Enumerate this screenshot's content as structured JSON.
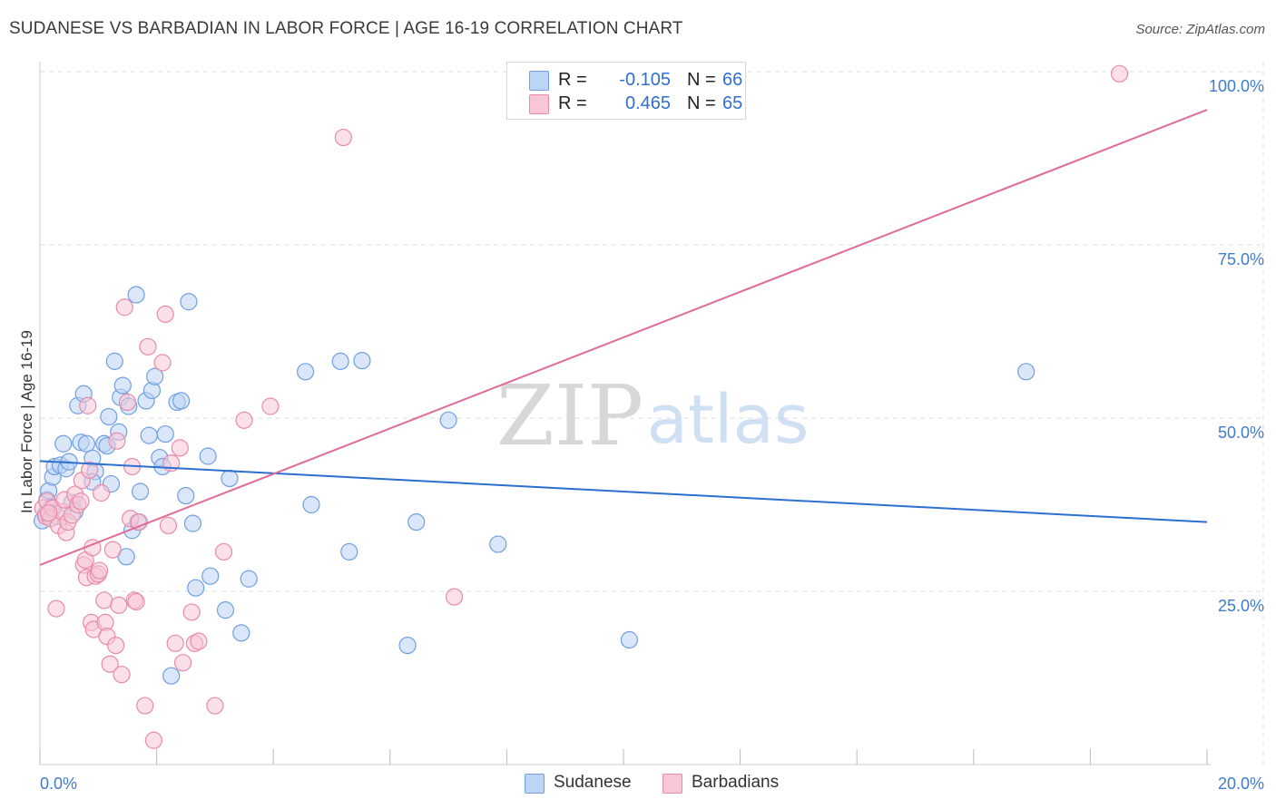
{
  "title": "SUDANESE VS BARBADIAN IN LABOR FORCE | AGE 16-19 CORRELATION CHART",
  "source": "Source: ZipAtlas.com",
  "watermark": {
    "zip": "ZIP",
    "atlas": "atlas"
  },
  "legend": {
    "sudanese": {
      "r_label": "R =",
      "r_value": "-0.105",
      "n_label": "N =",
      "n_value": "66"
    },
    "barbadians": {
      "r_label": "R =",
      "r_value": "0.465",
      "n_label": "N =",
      "n_value": "65"
    }
  },
  "bottom_legend": {
    "sudanese": "Sudanese",
    "barbadians": "Barbadians"
  },
  "colors": {
    "blue_fill": "#bcd4f5",
    "blue_stroke": "#6f9fe0",
    "blue_line": "#2b6fd0",
    "pink_fill": "#f8c6d6",
    "pink_stroke": "#e98aaa",
    "pink_line": "#e06b96",
    "axis_text": "#3f7bd0",
    "grid": "#dddddd"
  },
  "chart_data": {
    "type": "scatter",
    "title": "SUDANESE VS BARBADIAN IN LABOR FORCE | AGE 16-19 CORRELATION CHART",
    "xlabel": "",
    "ylabel": "In Labor Force | Age 16-19",
    "xlim": [
      0,
      20
    ],
    "ylim": [
      0,
      100
    ],
    "x_tick_labels": [
      {
        "value": 0,
        "label": "0.0%"
      },
      {
        "value": 20,
        "label": "20.0%"
      }
    ],
    "y_tick_labels": [
      {
        "value": 25,
        "label": "25.0%"
      },
      {
        "value": 50,
        "label": "50.0%"
      },
      {
        "value": 75,
        "label": "75.0%"
      },
      {
        "value": 100,
        "label": "100.0%"
      }
    ],
    "series": [
      {
        "name": "Sudanese",
        "color": "#6f9fe0",
        "trendline": {
          "x": [
            0,
            20
          ],
          "y": [
            43.8,
            35.0
          ]
        },
        "points": [
          [
            0.04,
            35.2
          ],
          [
            0.12,
            38.2
          ],
          [
            0.15,
            39.5
          ],
          [
            0.22,
            41.5
          ],
          [
            0.25,
            43.0
          ],
          [
            0.35,
            43.2
          ],
          [
            0.4,
            46.3
          ],
          [
            0.45,
            42.7
          ],
          [
            0.5,
            43.7
          ],
          [
            0.55,
            37.8
          ],
          [
            0.6,
            36.5
          ],
          [
            0.65,
            51.8
          ],
          [
            0.7,
            46.5
          ],
          [
            0.75,
            53.5
          ],
          [
            0.8,
            46.3
          ],
          [
            0.9,
            44.2
          ],
          [
            0.95,
            42.3
          ],
          [
            0.9,
            40.8
          ],
          [
            1.1,
            46.3
          ],
          [
            1.15,
            46.0
          ],
          [
            1.18,
            50.2
          ],
          [
            1.22,
            40.5
          ],
          [
            1.28,
            58.2
          ],
          [
            1.35,
            48.0
          ],
          [
            1.38,
            53.0
          ],
          [
            1.42,
            54.7
          ],
          [
            1.48,
            30.0
          ],
          [
            1.52,
            51.7
          ],
          [
            1.58,
            33.8
          ],
          [
            1.65,
            67.8
          ],
          [
            1.68,
            35.0
          ],
          [
            1.72,
            39.4
          ],
          [
            1.82,
            52.5
          ],
          [
            1.87,
            47.5
          ],
          [
            1.92,
            54.0
          ],
          [
            1.97,
            56.0
          ],
          [
            2.05,
            44.3
          ],
          [
            2.1,
            43.0
          ],
          [
            2.15,
            47.7
          ],
          [
            2.25,
            12.8
          ],
          [
            2.35,
            52.3
          ],
          [
            2.42,
            52.5
          ],
          [
            2.5,
            38.8
          ],
          [
            2.55,
            66.8
          ],
          [
            2.62,
            34.8
          ],
          [
            2.67,
            25.5
          ],
          [
            2.88,
            44.5
          ],
          [
            2.92,
            27.2
          ],
          [
            3.18,
            22.3
          ],
          [
            3.25,
            41.3
          ],
          [
            3.45,
            19.0
          ],
          [
            3.58,
            26.8
          ],
          [
            4.55,
            56.7
          ],
          [
            4.65,
            37.5
          ],
          [
            5.15,
            58.2
          ],
          [
            5.3,
            30.7
          ],
          [
            5.52,
            58.3
          ],
          [
            6.3,
            17.2
          ],
          [
            6.45,
            35.0
          ],
          [
            7.0,
            49.7
          ],
          [
            7.85,
            31.8
          ],
          [
            10.1,
            18.0
          ],
          [
            16.9,
            56.7
          ],
          [
            0.3,
            35.8
          ],
          [
            0.1,
            36.2
          ],
          [
            0.2,
            37.1
          ]
        ]
      },
      {
        "name": "Barbadians",
        "color": "#e98aaa",
        "trendline": {
          "x": [
            0,
            20
          ],
          "y": [
            28.8,
            94.5
          ]
        },
        "points": [
          [
            0.05,
            37.0
          ],
          [
            0.1,
            35.8
          ],
          [
            0.12,
            38.0
          ],
          [
            0.18,
            35.5
          ],
          [
            0.22,
            37.0
          ],
          [
            0.28,
            22.5
          ],
          [
            0.32,
            34.5
          ],
          [
            0.38,
            36.5
          ],
          [
            0.42,
            38.2
          ],
          [
            0.45,
            33.5
          ],
          [
            0.48,
            35.0
          ],
          [
            0.55,
            36.0
          ],
          [
            0.6,
            39.0
          ],
          [
            0.65,
            37.5
          ],
          [
            0.7,
            38.0
          ],
          [
            0.72,
            41.0
          ],
          [
            0.75,
            28.8
          ],
          [
            0.78,
            29.5
          ],
          [
            0.8,
            27.0
          ],
          [
            0.82,
            51.8
          ],
          [
            0.85,
            42.5
          ],
          [
            0.88,
            20.5
          ],
          [
            0.9,
            31.3
          ],
          [
            0.92,
            19.5
          ],
          [
            0.95,
            27.2
          ],
          [
            1.0,
            27.5
          ],
          [
            1.02,
            28.0
          ],
          [
            1.05,
            39.2
          ],
          [
            1.1,
            23.7
          ],
          [
            1.12,
            20.5
          ],
          [
            1.15,
            18.5
          ],
          [
            1.2,
            14.5
          ],
          [
            1.25,
            31.0
          ],
          [
            1.3,
            17.2
          ],
          [
            1.32,
            46.7
          ],
          [
            1.35,
            23.0
          ],
          [
            1.4,
            13.0
          ],
          [
            1.45,
            66.0
          ],
          [
            1.5,
            52.3
          ],
          [
            1.55,
            35.5
          ],
          [
            1.58,
            43.0
          ],
          [
            1.62,
            23.7
          ],
          [
            1.65,
            23.5
          ],
          [
            1.7,
            35.0
          ],
          [
            1.8,
            8.5
          ],
          [
            1.85,
            60.3
          ],
          [
            1.95,
            3.5
          ],
          [
            2.1,
            58.0
          ],
          [
            2.15,
            65.0
          ],
          [
            2.2,
            34.5
          ],
          [
            2.25,
            43.5
          ],
          [
            2.32,
            17.5
          ],
          [
            2.4,
            45.7
          ],
          [
            2.45,
            14.7
          ],
          [
            2.6,
            22.0
          ],
          [
            2.65,
            17.5
          ],
          [
            2.72,
            17.8
          ],
          [
            3.0,
            8.5
          ],
          [
            3.15,
            30.7
          ],
          [
            3.5,
            49.7
          ],
          [
            3.95,
            51.7
          ],
          [
            5.2,
            90.5
          ],
          [
            7.1,
            24.2
          ],
          [
            18.5,
            99.7
          ],
          [
            0.15,
            36.3
          ]
        ]
      }
    ]
  }
}
